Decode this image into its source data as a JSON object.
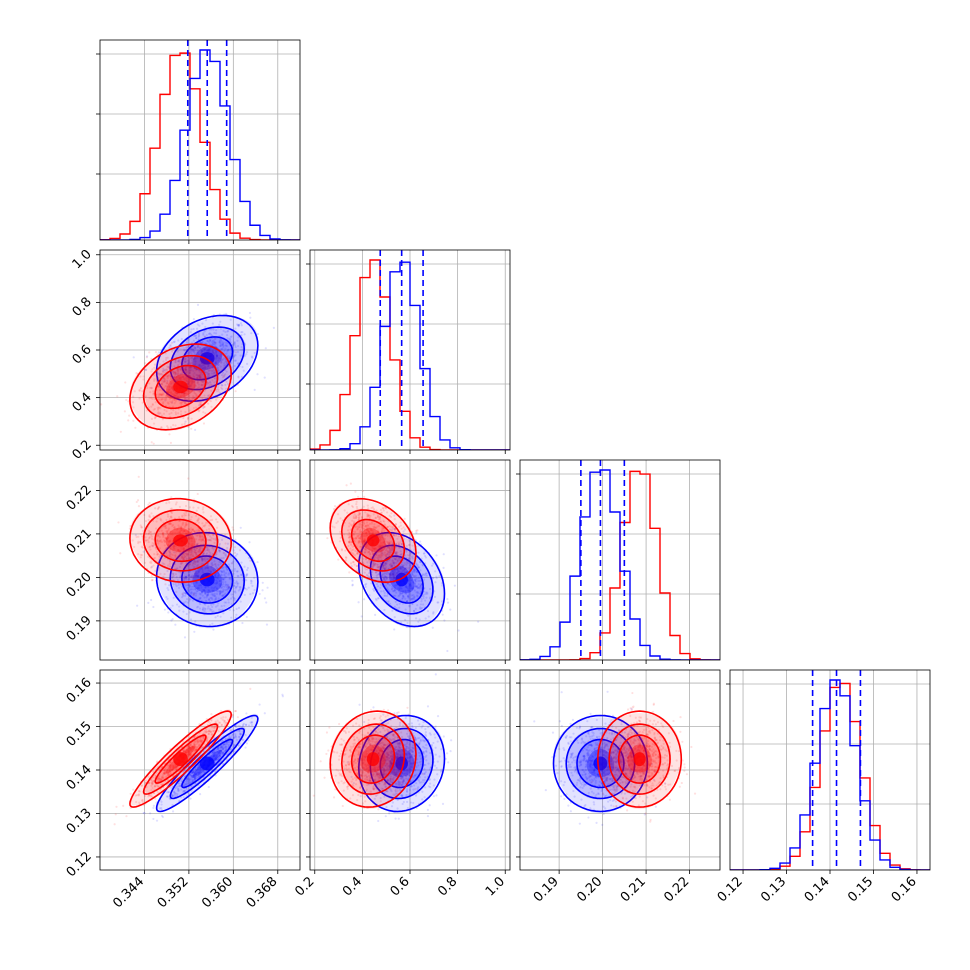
{
  "chart_data": {
    "type": "corner",
    "parameters": 4,
    "colors": {
      "series_a": "#0000ff",
      "series_b": "#ff0000",
      "quantile_lines": "#0000ff"
    },
    "grid": true,
    "axes": [
      {
        "range": [
          0.336,
          0.372
        ],
        "ticks": [
          0.344,
          0.352,
          0.36,
          0.368
        ],
        "tick_labels": [
          "0.344",
          "0.352",
          "0.360",
          "0.368"
        ]
      },
      {
        "range": [
          0.18,
          1.02
        ],
        "ticks": [
          0.2,
          0.4,
          0.6,
          0.8,
          1.0
        ],
        "tick_labels": [
          "0.2",
          "0.4",
          "0.6",
          "0.8",
          "1.0"
        ]
      },
      {
        "range": [
          0.181,
          0.227
        ],
        "ticks": [
          0.19,
          0.2,
          0.21,
          0.22
        ],
        "tick_labels": [
          "0.19",
          "0.20",
          "0.21",
          "0.22"
        ]
      },
      {
        "range": [
          0.117,
          0.163
        ],
        "ticks": [
          0.12,
          0.13,
          0.14,
          0.15,
          0.16
        ],
        "tick_labels": [
          "0.12",
          "0.13",
          "0.14",
          "0.15",
          "0.16"
        ]
      }
    ],
    "series": [
      {
        "color": "#0000ff",
        "mean": [
          0.3553,
          0.565,
          0.1995,
          0.1415
        ],
        "sd": [
          0.0038,
          0.075,
          0.0045,
          0.0046
        ],
        "corr": [
          [
            1,
            0.3,
            -0.05,
            0.93
          ],
          [
            0.3,
            1,
            -0.3,
            0.1
          ],
          [
            -0.05,
            -0.3,
            1,
            0.0
          ],
          [
            0.93,
            0.1,
            0.0,
            1
          ]
        ]
      },
      {
        "color": "#ff0000",
        "mean": [
          0.3505,
          0.445,
          0.2085,
          0.1425
        ],
        "sd": [
          0.0038,
          0.075,
          0.004,
          0.0046
        ],
        "corr": [
          [
            1,
            0.3,
            -0.05,
            0.93
          ],
          [
            0.3,
            1,
            -0.3,
            0.1
          ],
          [
            -0.05,
            -0.3,
            1,
            0.0
          ],
          [
            0.93,
            0.1,
            0.0,
            1
          ]
        ]
      }
    ],
    "quantiles": [
      [
        0.3518,
        0.3553,
        0.3588
      ],
      [
        0.475,
        0.565,
        0.655
      ],
      [
        0.195,
        0.1995,
        0.205
      ],
      [
        0.136,
        0.1415,
        0.147
      ]
    ]
  }
}
